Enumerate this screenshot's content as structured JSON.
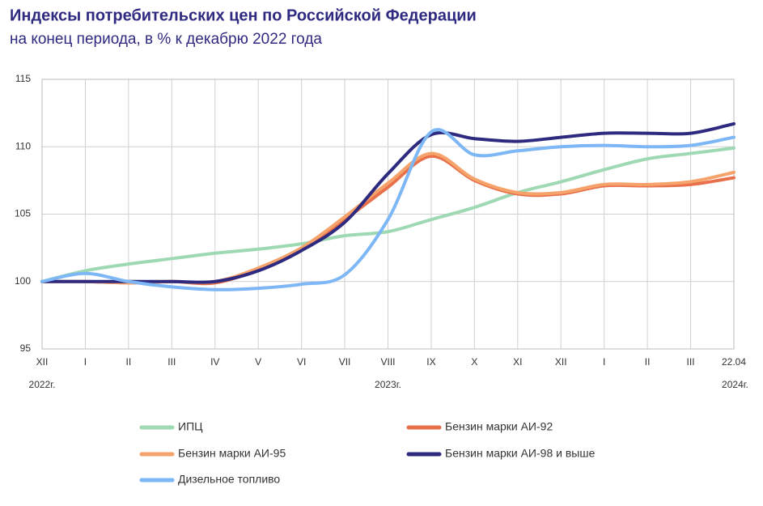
{
  "chart_data": {
    "type": "line",
    "title": "Индексы потребительских цен по Российской Федерации",
    "subtitle": "на конец периода, в % к декабрю 2022 года",
    "categories": [
      "XII",
      "I",
      "II",
      "III",
      "IV",
      "V",
      "VI",
      "VII",
      "VIII",
      "IX",
      "X",
      "XI",
      "XII",
      "I",
      "II",
      "III",
      "22.04"
    ],
    "year_labels": [
      "2022г.",
      "2023г.",
      "2024г."
    ],
    "ylim": [
      95,
      115
    ],
    "yticks": [
      95,
      100,
      105,
      110,
      115
    ],
    "grid": true,
    "series": [
      {
        "name": "ИПЦ",
        "color": "#9fd9b4",
        "values": [
          100,
          100.8,
          101.3,
          101.7,
          102.1,
          102.4,
          102.8,
          103.4,
          103.7,
          104.6,
          105.5,
          106.6,
          107.4,
          108.3,
          109.1,
          109.5,
          109.9
        ]
      },
      {
        "name": "Бензин марки АИ-92",
        "color": "#e8704a",
        "values": [
          100,
          100,
          99.9,
          100,
          99.9,
          100.9,
          102.4,
          104.6,
          107.0,
          109.3,
          107.5,
          106.5,
          106.5,
          107.1,
          107.1,
          107.2,
          107.7
        ]
      },
      {
        "name": "Бензин марки АИ-95",
        "color": "#f6a26b",
        "values": [
          100,
          100,
          99.9,
          100,
          100,
          101.0,
          102.5,
          104.8,
          107.3,
          109.5,
          107.6,
          106.6,
          106.6,
          107.2,
          107.2,
          107.4,
          108.1
        ]
      },
      {
        "name": "Бензин марки АИ-98 и выше",
        "color": "#2e2a80",
        "values": [
          100,
          100,
          100,
          100,
          100,
          100.8,
          102.3,
          104.4,
          108.0,
          110.9,
          110.6,
          110.4,
          110.7,
          111.0,
          111.0,
          111.0,
          111.7
        ]
      },
      {
        "name": "Дизельное топливо",
        "color": "#7db7f5",
        "values": [
          100,
          100.6,
          100,
          99.6,
          99.4,
          99.5,
          99.8,
          100.5,
          104.6,
          111.1,
          109.4,
          109.7,
          110.0,
          110.1,
          110.0,
          110.1,
          110.7
        ]
      }
    ]
  }
}
